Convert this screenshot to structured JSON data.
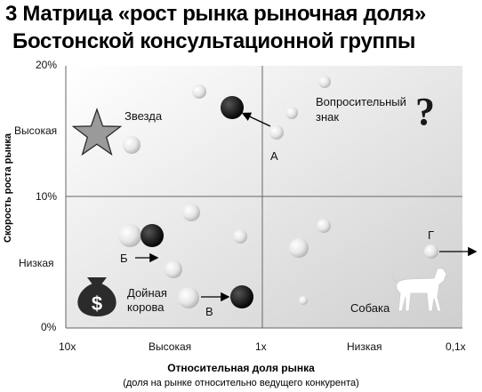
{
  "title_line1": "3   Матрица «рост рынка  рыночная доля»",
  "title_line2": "Бостонской консультационной группы",
  "axes": {
    "y_title": "Скорость роста рынка",
    "x_title": "Относительная доля рынка",
    "x_subtitle": "(доля на рынке относительно ведущего конкурента)",
    "y_ticks": [
      "20%",
      "10%",
      "0%"
    ],
    "y_levels": [
      "Высокая",
      "Низкая"
    ],
    "x_ticks": [
      "10x",
      "1x",
      "0,1x"
    ],
    "x_levels": [
      "Высокая",
      "Низкая"
    ]
  },
  "quadrants": {
    "star": "Звезда",
    "question": "Вопросительный знак",
    "cash_cow": "Дойная корова",
    "dog": "Собака"
  },
  "markers": {
    "a": "А",
    "b": "Б",
    "v": "В",
    "g": "Г"
  },
  "icons": [
    "star-icon",
    "question-mark-icon",
    "money-bag-icon",
    "dog-icon"
  ]
}
